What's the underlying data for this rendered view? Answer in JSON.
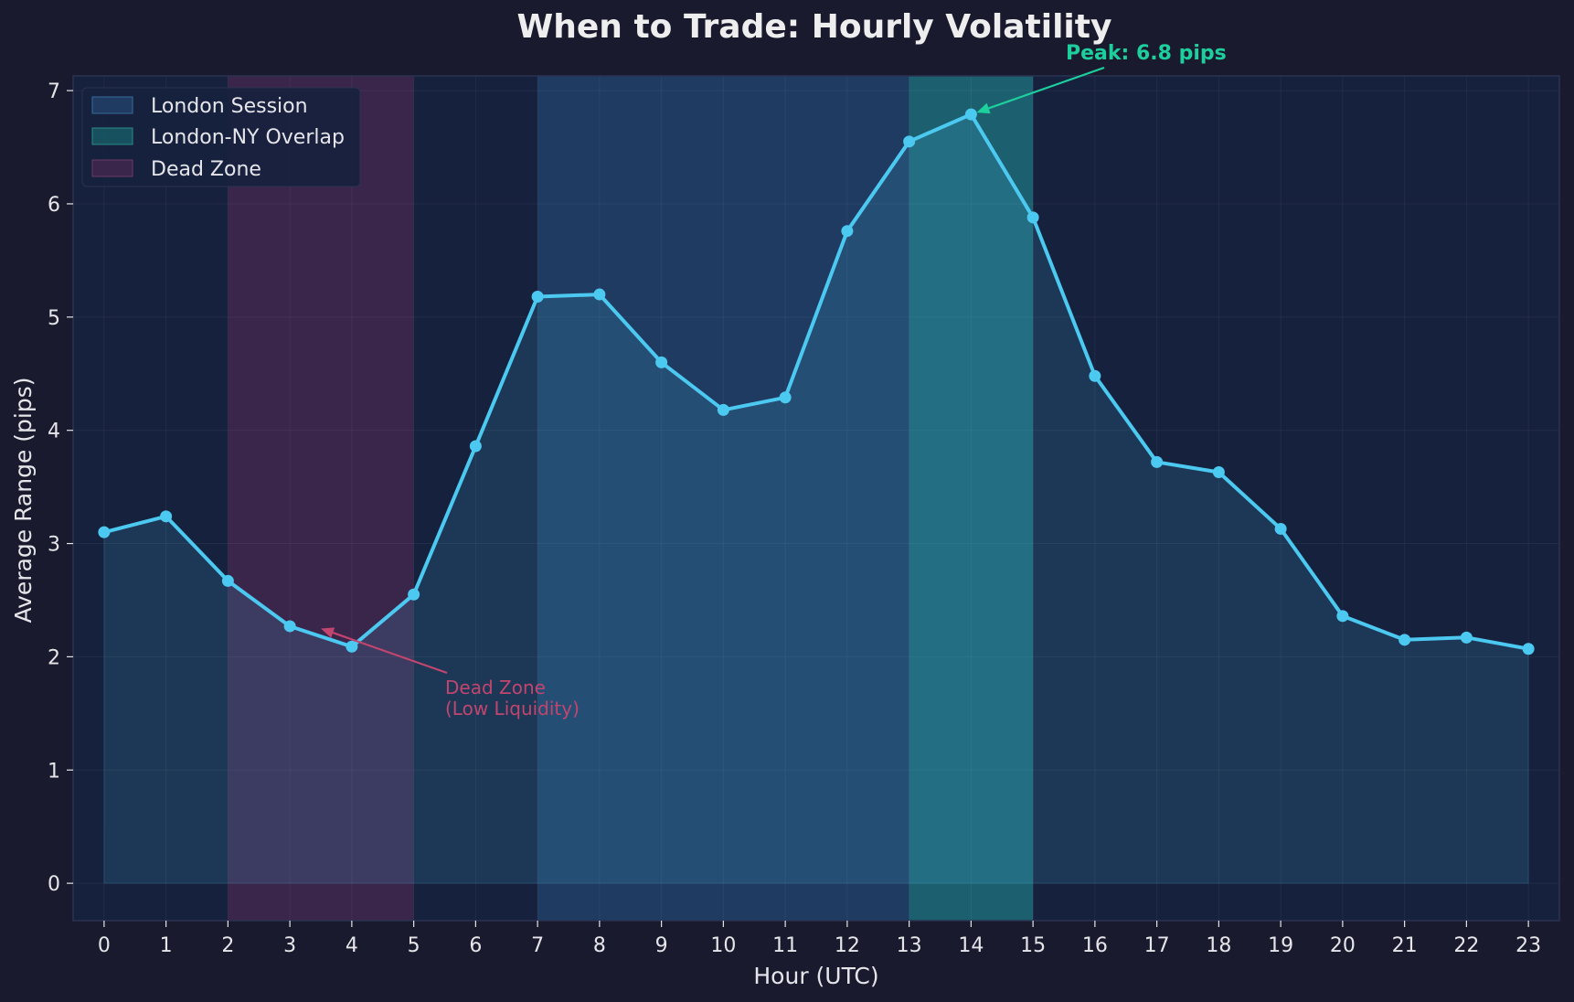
{
  "chart_data": {
    "type": "line",
    "title": "When to Trade: Hourly Volatility",
    "xlabel": "Hour (UTC)",
    "ylabel": "Average Range (pips)",
    "xlim": [
      -0.5,
      23.5
    ],
    "ylim": [
      -0.33,
      7.13
    ],
    "x": [
      0,
      1,
      2,
      3,
      4,
      5,
      6,
      7,
      8,
      9,
      10,
      11,
      12,
      13,
      14,
      15,
      16,
      17,
      18,
      19,
      20,
      21,
      22,
      23
    ],
    "x_tick_labels": [
      "0",
      "1",
      "2",
      "3",
      "4",
      "5",
      "6",
      "7",
      "8",
      "9",
      "10",
      "11",
      "12",
      "13",
      "14",
      "15",
      "16",
      "17",
      "18",
      "19",
      "20",
      "21",
      "22",
      "23"
    ],
    "y_ticks": [
      0,
      1,
      2,
      3,
      4,
      5,
      6,
      7
    ],
    "y_tick_labels": [
      "0",
      "1",
      "2",
      "3",
      "4",
      "5",
      "6",
      "7"
    ],
    "grid": true,
    "series": [
      {
        "values": [
          3.1,
          3.24,
          2.67,
          2.27,
          2.09,
          2.55,
          3.86,
          5.18,
          5.2,
          4.6,
          4.18,
          4.29,
          5.76,
          6.55,
          6.79,
          5.88,
          4.48,
          3.72,
          3.63,
          3.13,
          2.36,
          2.15,
          2.17,
          2.07
        ],
        "color": "#4cc9f0",
        "fill": true
      }
    ],
    "bands": [
      {
        "name": "London Session",
        "start": 7,
        "end": 15,
        "color": "#2a5a8c"
      },
      {
        "name": "London-NY Overlap",
        "start": 13,
        "end": 15,
        "color": "#1a7a7a"
      },
      {
        "name": "Dead Zone",
        "start": 2,
        "end": 5,
        "color": "#5a2a55"
      }
    ],
    "legend": {
      "position": "top-left",
      "entries": [
        "London Session",
        "London-NY Overlap",
        "Dead Zone"
      ]
    },
    "annotations": [
      {
        "text": "Peak: 6.8 pips",
        "x": 14,
        "y": 6.79,
        "color": "#1ecf9e"
      },
      {
        "line1": "Dead Zone",
        "line2": "(Low Liquidity)",
        "x": 3.5,
        "y": 2.25,
        "color": "#c2456e"
      }
    ],
    "colors": {
      "background": "#1a1a2e",
      "plot_background": "#16213e",
      "line": "#4cc9f0",
      "peak": "#1ecf9e",
      "dead": "#c2456e"
    }
  }
}
